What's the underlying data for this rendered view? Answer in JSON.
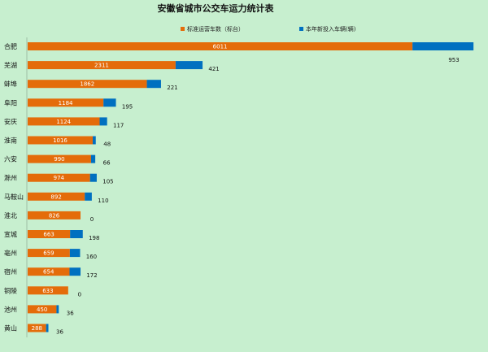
{
  "chart_data": {
    "type": "bar",
    "orientation": "horizontal",
    "stacked": true,
    "title": "安徽省城市公交车运力统计表",
    "legend_position": "top",
    "grid": false,
    "categories": [
      "合肥",
      "芜湖",
      "蚌埠",
      "阜阳",
      "安庆",
      "淮南",
      "六安",
      "滁州",
      "马鞍山",
      "淮北",
      "宣城",
      "亳州",
      "宿州",
      "铜陵",
      "池州",
      "黄山"
    ],
    "series": [
      {
        "name": "标准运营车数（标台）",
        "color": "#e46c0a",
        "values": [
          6011,
          2311,
          1862,
          1184,
          1124,
          1016,
          990,
          974,
          892,
          826,
          663,
          659,
          654,
          633,
          450,
          288
        ]
      },
      {
        "name": "本年新投入车辆(辆)",
        "color": "#0070c0",
        "values": [
          953,
          421,
          221,
          195,
          117,
          48,
          66,
          105,
          110,
          0,
          198,
          160,
          172,
          0,
          36,
          36
        ]
      }
    ],
    "xlim": [
      0,
      7000
    ]
  }
}
